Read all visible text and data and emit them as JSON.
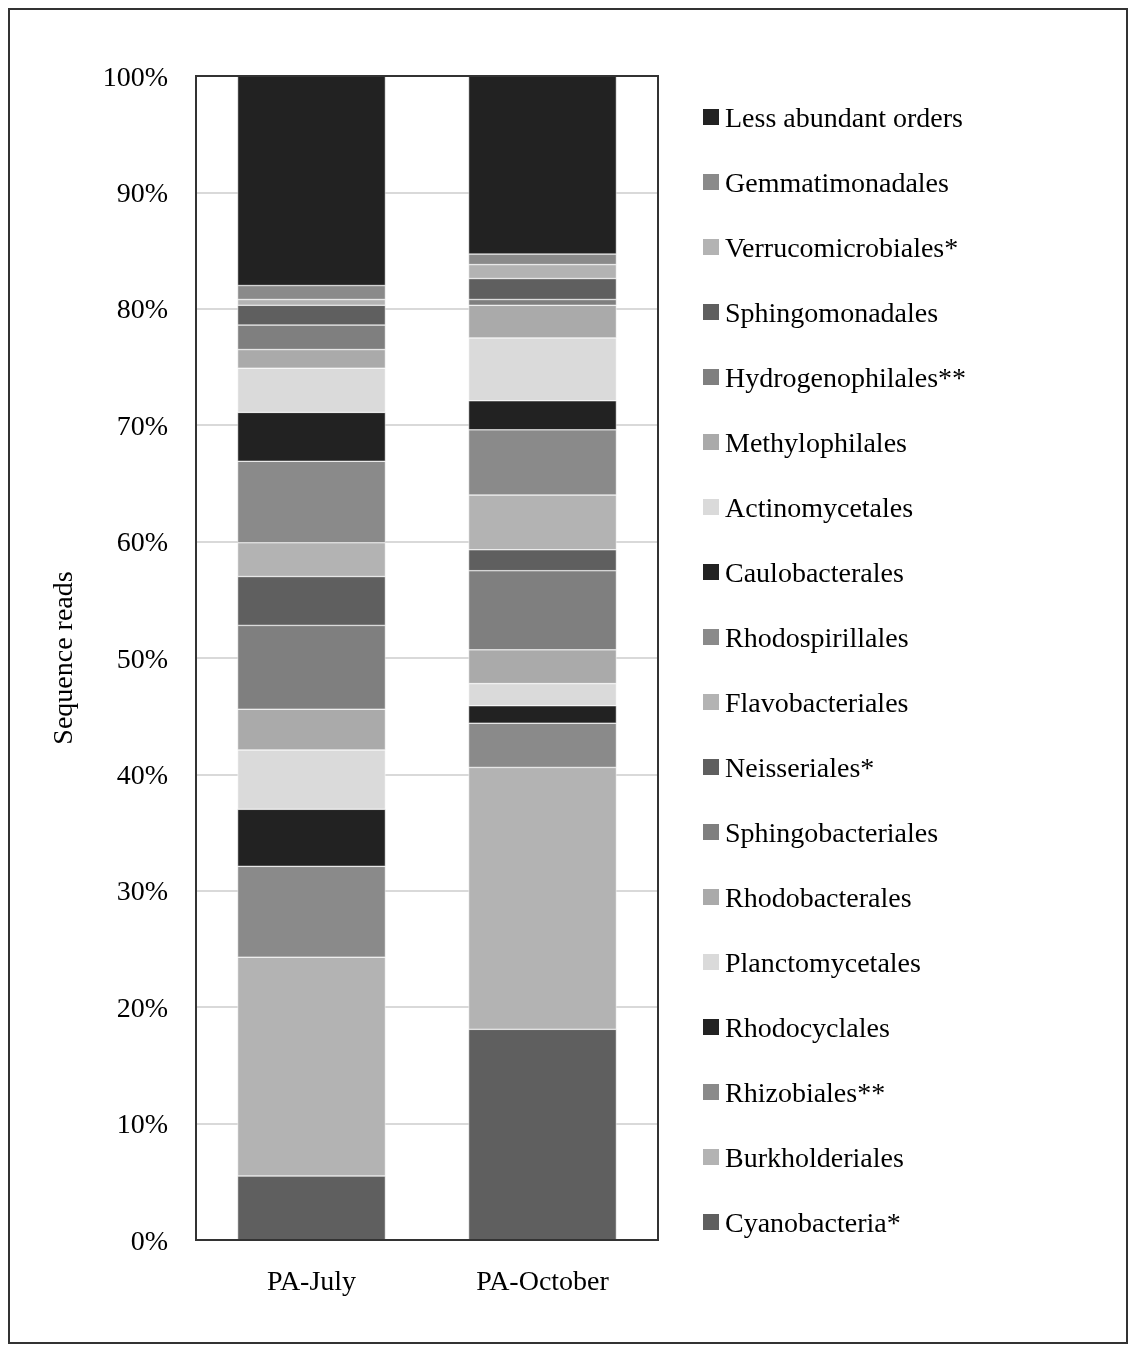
{
  "chart_data": {
    "type": "bar",
    "stacked": true,
    "ylabel": "Sequence reads",
    "categories": [
      "PA-July",
      "PA-October"
    ],
    "ylim": [
      0,
      100
    ],
    "yticks": [
      {
        "value": 0,
        "label": "0%"
      },
      {
        "value": 10,
        "label": "10%"
      },
      {
        "value": 20,
        "label": "20%"
      },
      {
        "value": 30,
        "label": "30%"
      },
      {
        "value": 40,
        "label": "40%"
      },
      {
        "value": 50,
        "label": "50%"
      },
      {
        "value": 60,
        "label": "60%"
      },
      {
        "value": 70,
        "label": "70%"
      },
      {
        "value": 80,
        "label": "80%"
      },
      {
        "value": 90,
        "label": "90%"
      },
      {
        "value": 100,
        "label": "100%"
      }
    ],
    "grid": "y",
    "legend": "right",
    "series": [
      {
        "name": "Cyanobacteria*",
        "color": "#5f5f5f",
        "values": [
          5.5,
          18.1
        ]
      },
      {
        "name": "Burkholderiales",
        "color": "#b3b3b3",
        "values": [
          18.8,
          22.5
        ]
      },
      {
        "name": "Rhizobiales**",
        "color": "#8a8a8a",
        "values": [
          7.8,
          3.8
        ]
      },
      {
        "name": "Rhodocyclales",
        "color": "#222222",
        "values": [
          4.9,
          1.5
        ]
      },
      {
        "name": "Planctomycetales",
        "color": "#dadada",
        "values": [
          5.1,
          1.9
        ]
      },
      {
        "name": "Rhodobacterales",
        "color": "#aaaaaa",
        "values": [
          3.5,
          2.9
        ]
      },
      {
        "name": "Sphingobacteriales",
        "color": "#7f7f7f",
        "values": [
          7.2,
          6.8
        ]
      },
      {
        "name": "Neisseriales*",
        "color": "#5f5f5f",
        "values": [
          4.2,
          1.8
        ]
      },
      {
        "name": "Flavobacteriales",
        "color": "#b3b3b3",
        "values": [
          2.9,
          4.7
        ]
      },
      {
        "name": "Rhodospirillales",
        "color": "#8a8a8a",
        "values": [
          7.0,
          5.6
        ]
      },
      {
        "name": "Caulobacterales",
        "color": "#222222",
        "values": [
          4.2,
          2.5
        ]
      },
      {
        "name": "Actinomycetales",
        "color": "#dadada",
        "values": [
          3.8,
          5.4
        ]
      },
      {
        "name": "Methylophilales",
        "color": "#aaaaaa",
        "values": [
          1.6,
          2.8
        ]
      },
      {
        "name": "Hydrogenophilales**",
        "color": "#7f7f7f",
        "values": [
          2.1,
          0.5
        ]
      },
      {
        "name": "Sphingomonadales",
        "color": "#5f5f5f",
        "values": [
          1.7,
          1.8
        ]
      },
      {
        "name": "Verrucomicrobiales*",
        "color": "#b3b3b3",
        "values": [
          0.5,
          1.2
        ]
      },
      {
        "name": "Gemmatimonadales",
        "color": "#8a8a8a",
        "values": [
          1.2,
          0.9
        ]
      },
      {
        "name": "Less abundant orders",
        "color": "#222222",
        "values": [
          18.0,
          15.3
        ]
      }
    ]
  }
}
